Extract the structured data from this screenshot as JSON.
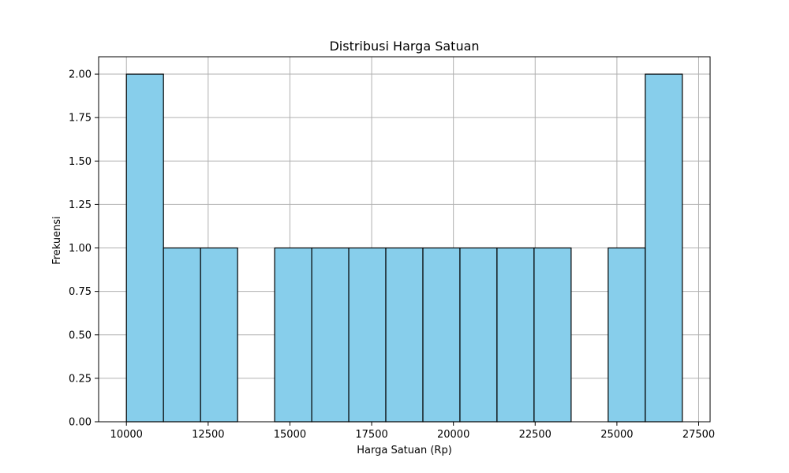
{
  "chart_data": {
    "type": "bar",
    "title": "Distribusi Harga Satuan",
    "xlabel": "Harga Satuan (Rp)",
    "ylabel": "Frekuensi",
    "bins": [
      {
        "start": 10000,
        "end": 11133,
        "count": 2
      },
      {
        "start": 11133,
        "end": 12267,
        "count": 1
      },
      {
        "start": 12267,
        "end": 13400,
        "count": 1
      },
      {
        "start": 13400,
        "end": 14533,
        "count": 0
      },
      {
        "start": 14533,
        "end": 15667,
        "count": 1
      },
      {
        "start": 15667,
        "end": 16800,
        "count": 1
      },
      {
        "start": 16800,
        "end": 17933,
        "count": 1
      },
      {
        "start": 17933,
        "end": 19067,
        "count": 1
      },
      {
        "start": 19067,
        "end": 20200,
        "count": 1
      },
      {
        "start": 20200,
        "end": 21333,
        "count": 1
      },
      {
        "start": 21333,
        "end": 22467,
        "count": 1
      },
      {
        "start": 22467,
        "end": 23600,
        "count": 1
      },
      {
        "start": 23600,
        "end": 24733,
        "count": 0
      },
      {
        "start": 24733,
        "end": 25867,
        "count": 1
      },
      {
        "start": 25867,
        "end": 27000,
        "count": 2
      }
    ],
    "xlim": [
      9150,
      27850
    ],
    "ylim": [
      0,
      2.1
    ],
    "x_ticks": [
      10000,
      12500,
      15000,
      17500,
      20000,
      22500,
      25000,
      27500
    ],
    "x_tick_labels": [
      "10000",
      "12500",
      "15000",
      "17500",
      "20000",
      "22500",
      "25000",
      "27500"
    ],
    "y_ticks": [
      0,
      0.25,
      0.5,
      0.75,
      1.0,
      1.25,
      1.5,
      1.75,
      2.0
    ],
    "y_tick_labels": [
      "0.00",
      "0.25",
      "0.50",
      "0.75",
      "1.00",
      "1.25",
      "1.50",
      "1.75",
      "2.00"
    ],
    "grid": true,
    "bar_color": "#87ceeb",
    "edge_color": "#000000",
    "grid_color": "#b0b0b0"
  }
}
